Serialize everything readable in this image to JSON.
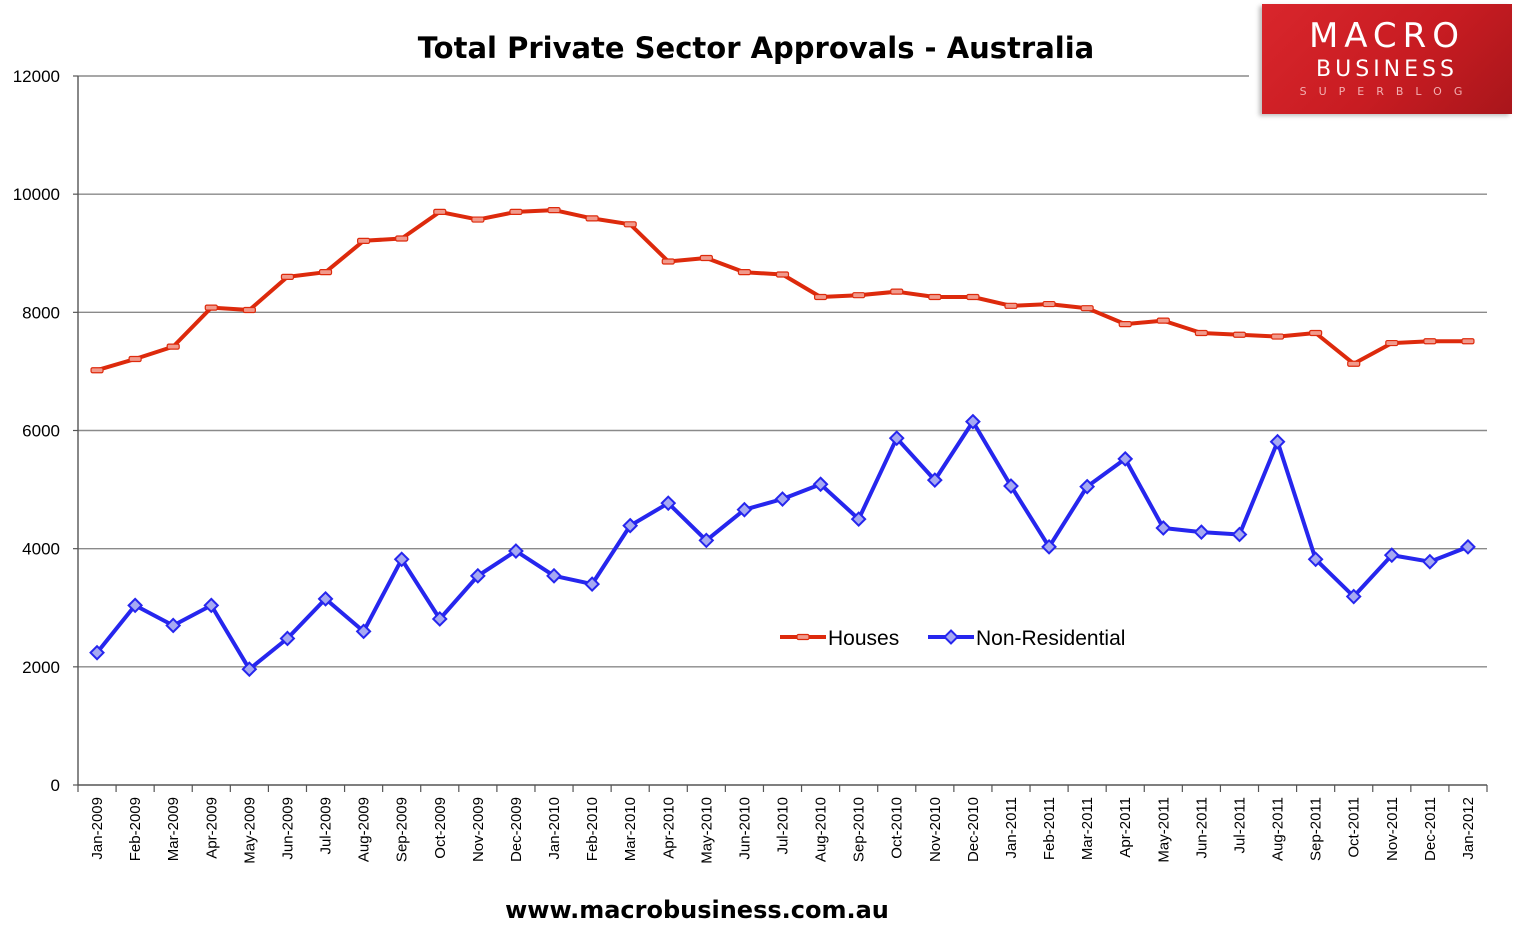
{
  "chart_data": {
    "type": "line",
    "title": "Total Private Sector Approvals - Australia",
    "xlabel": "",
    "ylabel": "",
    "ylim": [
      0,
      12000
    ],
    "y_ticks": [
      0,
      2000,
      4000,
      6000,
      8000,
      10000,
      12000
    ],
    "grid": true,
    "legend_position": "center-right",
    "categories": [
      "Jan-2009",
      "Feb-2009",
      "Mar-2009",
      "Apr-2009",
      "May-2009",
      "Jun-2009",
      "Jul-2009",
      "Aug-2009",
      "Sep-2009",
      "Oct-2009",
      "Nov-2009",
      "Dec-2009",
      "Jan-2010",
      "Feb-2010",
      "Mar-2010",
      "Apr-2010",
      "May-2010",
      "Jun-2010",
      "Jul-2010",
      "Aug-2010",
      "Sep-2010",
      "Oct-2010",
      "Nov-2010",
      "Dec-2010",
      "Jan-2011",
      "Feb-2011",
      "Mar-2011",
      "Apr-2011",
      "May-2011",
      "Jun-2011",
      "Jul-2011",
      "Aug-2011",
      "Sep-2011",
      "Oct-2011",
      "Nov-2011",
      "Dec-2011",
      "Jan-2012"
    ],
    "series": [
      {
        "name": "Houses",
        "color": "#dd2a0c",
        "marker": "dash",
        "values": [
          7020,
          7210,
          7420,
          8080,
          8040,
          8600,
          8680,
          9210,
          9250,
          9700,
          9570,
          9700,
          9730,
          9590,
          9490,
          8860,
          8920,
          8680,
          8640,
          8260,
          8290,
          8350,
          8260,
          8260,
          8110,
          8140,
          8070,
          7800,
          7860,
          7650,
          7620,
          7590,
          7650,
          7130,
          7480,
          7510,
          7510
        ]
      },
      {
        "name": "Non-Residential",
        "color": "#2626ee",
        "marker": "diamond",
        "values": [
          2240,
          3040,
          2700,
          3040,
          1960,
          2480,
          3150,
          2600,
          3820,
          2810,
          3540,
          3960,
          3540,
          3400,
          4390,
          4770,
          4140,
          4660,
          4840,
          5090,
          4500,
          5870,
          5160,
          6150,
          5060,
          4030,
          5050,
          5520,
          4350,
          4280,
          4240,
          5810,
          3820,
          3190,
          3890,
          3780,
          4030
        ]
      }
    ]
  },
  "footer": {
    "url": "www.macrobusiness.com.au"
  },
  "logo": {
    "line1": "MACRO",
    "line2": "BUSINESS",
    "line3": "SUPERBLOG"
  }
}
